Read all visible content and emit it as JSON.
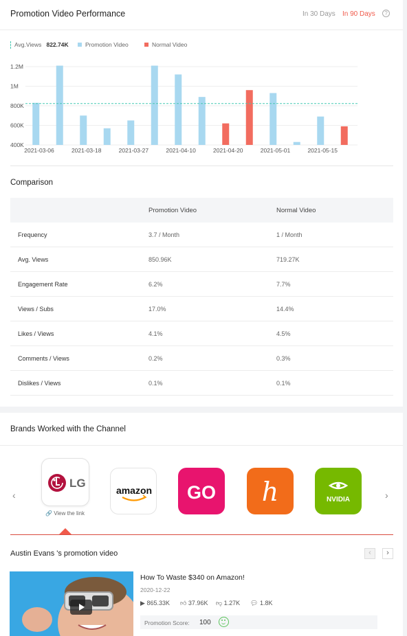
{
  "performance": {
    "title": "Promotion Video Performance",
    "ranges": [
      "In 30 Days",
      "In 90 Days"
    ],
    "active_range": "In 90 Days",
    "help_icon": "question-circle-icon",
    "legend": {
      "avg_label": "Avg.Views",
      "avg_value": "822.74K",
      "promotion_label": "Promotion Video",
      "normal_label": "Normal Video"
    },
    "colors": {
      "promotion": "#a8d8f0",
      "normal": "#f26c5f",
      "avg_line": "#46c9b2"
    }
  },
  "chart_data": {
    "type": "bar",
    "y_ticks": [
      "1.2M",
      "1M",
      "800K",
      "600K",
      "400K"
    ],
    "ylim": [
      400000,
      1200000
    ],
    "x_tick_labels": [
      "2021-03-06",
      "2021-03-18",
      "2021-03-27",
      "2021-04-10",
      "2021-04-20",
      "2021-05-01",
      "2021-05-15"
    ],
    "avg_value": 822740,
    "bars": [
      {
        "type": "promotion",
        "value": 830000
      },
      {
        "type": "promotion",
        "value": 1210000
      },
      {
        "type": "promotion",
        "value": 700000
      },
      {
        "type": "promotion",
        "value": 570000
      },
      {
        "type": "promotion",
        "value": 650000
      },
      {
        "type": "promotion",
        "value": 1210000
      },
      {
        "type": "promotion",
        "value": 1120000
      },
      {
        "type": "promotion",
        "value": 890000
      },
      {
        "type": "normal",
        "value": 620000
      },
      {
        "type": "normal",
        "value": 960000
      },
      {
        "type": "promotion",
        "value": 930000
      },
      {
        "type": "promotion",
        "value": 430000
      },
      {
        "type": "promotion",
        "value": 690000
      },
      {
        "type": "normal",
        "value": 590000
      }
    ]
  },
  "comparison": {
    "title": "Comparison",
    "headers": [
      "",
      "Promotion Video",
      "Normal Video"
    ],
    "rows": [
      {
        "metric": "Frequency",
        "promotion": "3.7 / Month",
        "normal": "1 / Month"
      },
      {
        "metric": "Avg. Views",
        "promotion": "850.96K",
        "normal": "719.27K"
      },
      {
        "metric": "Engagement Rate",
        "promotion": "6.2%",
        "normal": "7.7%"
      },
      {
        "metric": "Views / Subs",
        "promotion": "17.0%",
        "normal": "14.4%"
      },
      {
        "metric": "Likes / Views",
        "promotion": "4.1%",
        "normal": "4.5%"
      },
      {
        "metric": "Comments / Views",
        "promotion": "0.2%",
        "normal": "0.3%"
      },
      {
        "metric": "Dislikes / Views",
        "promotion": "0.1%",
        "normal": "0.1%"
      }
    ]
  },
  "brands": {
    "title": "Brands Worked with the Channel",
    "items": [
      {
        "name": "LG",
        "logo": "lg-logo"
      },
      {
        "name": "amazon",
        "logo": "amazon-logo"
      },
      {
        "name": "GO",
        "logo": "go-logo",
        "color": "#e8146e"
      },
      {
        "name": "h",
        "logo": "honey-logo",
        "color": "#f26c1a"
      },
      {
        "name": "NVIDIA",
        "logo": "nvidia-logo",
        "color": "#76b900"
      }
    ],
    "view_link": "View the link"
  },
  "promo": {
    "title": "Austin Evans 's promotion video",
    "video": {
      "title": "How To Waste $340 on Amazon!",
      "date": "2020-12-22",
      "views": "865.33K",
      "likes": "37.96K",
      "dislikes": "1.27K",
      "comments": "1.8K",
      "score_label": "Promotion Score:",
      "score": "100"
    }
  }
}
